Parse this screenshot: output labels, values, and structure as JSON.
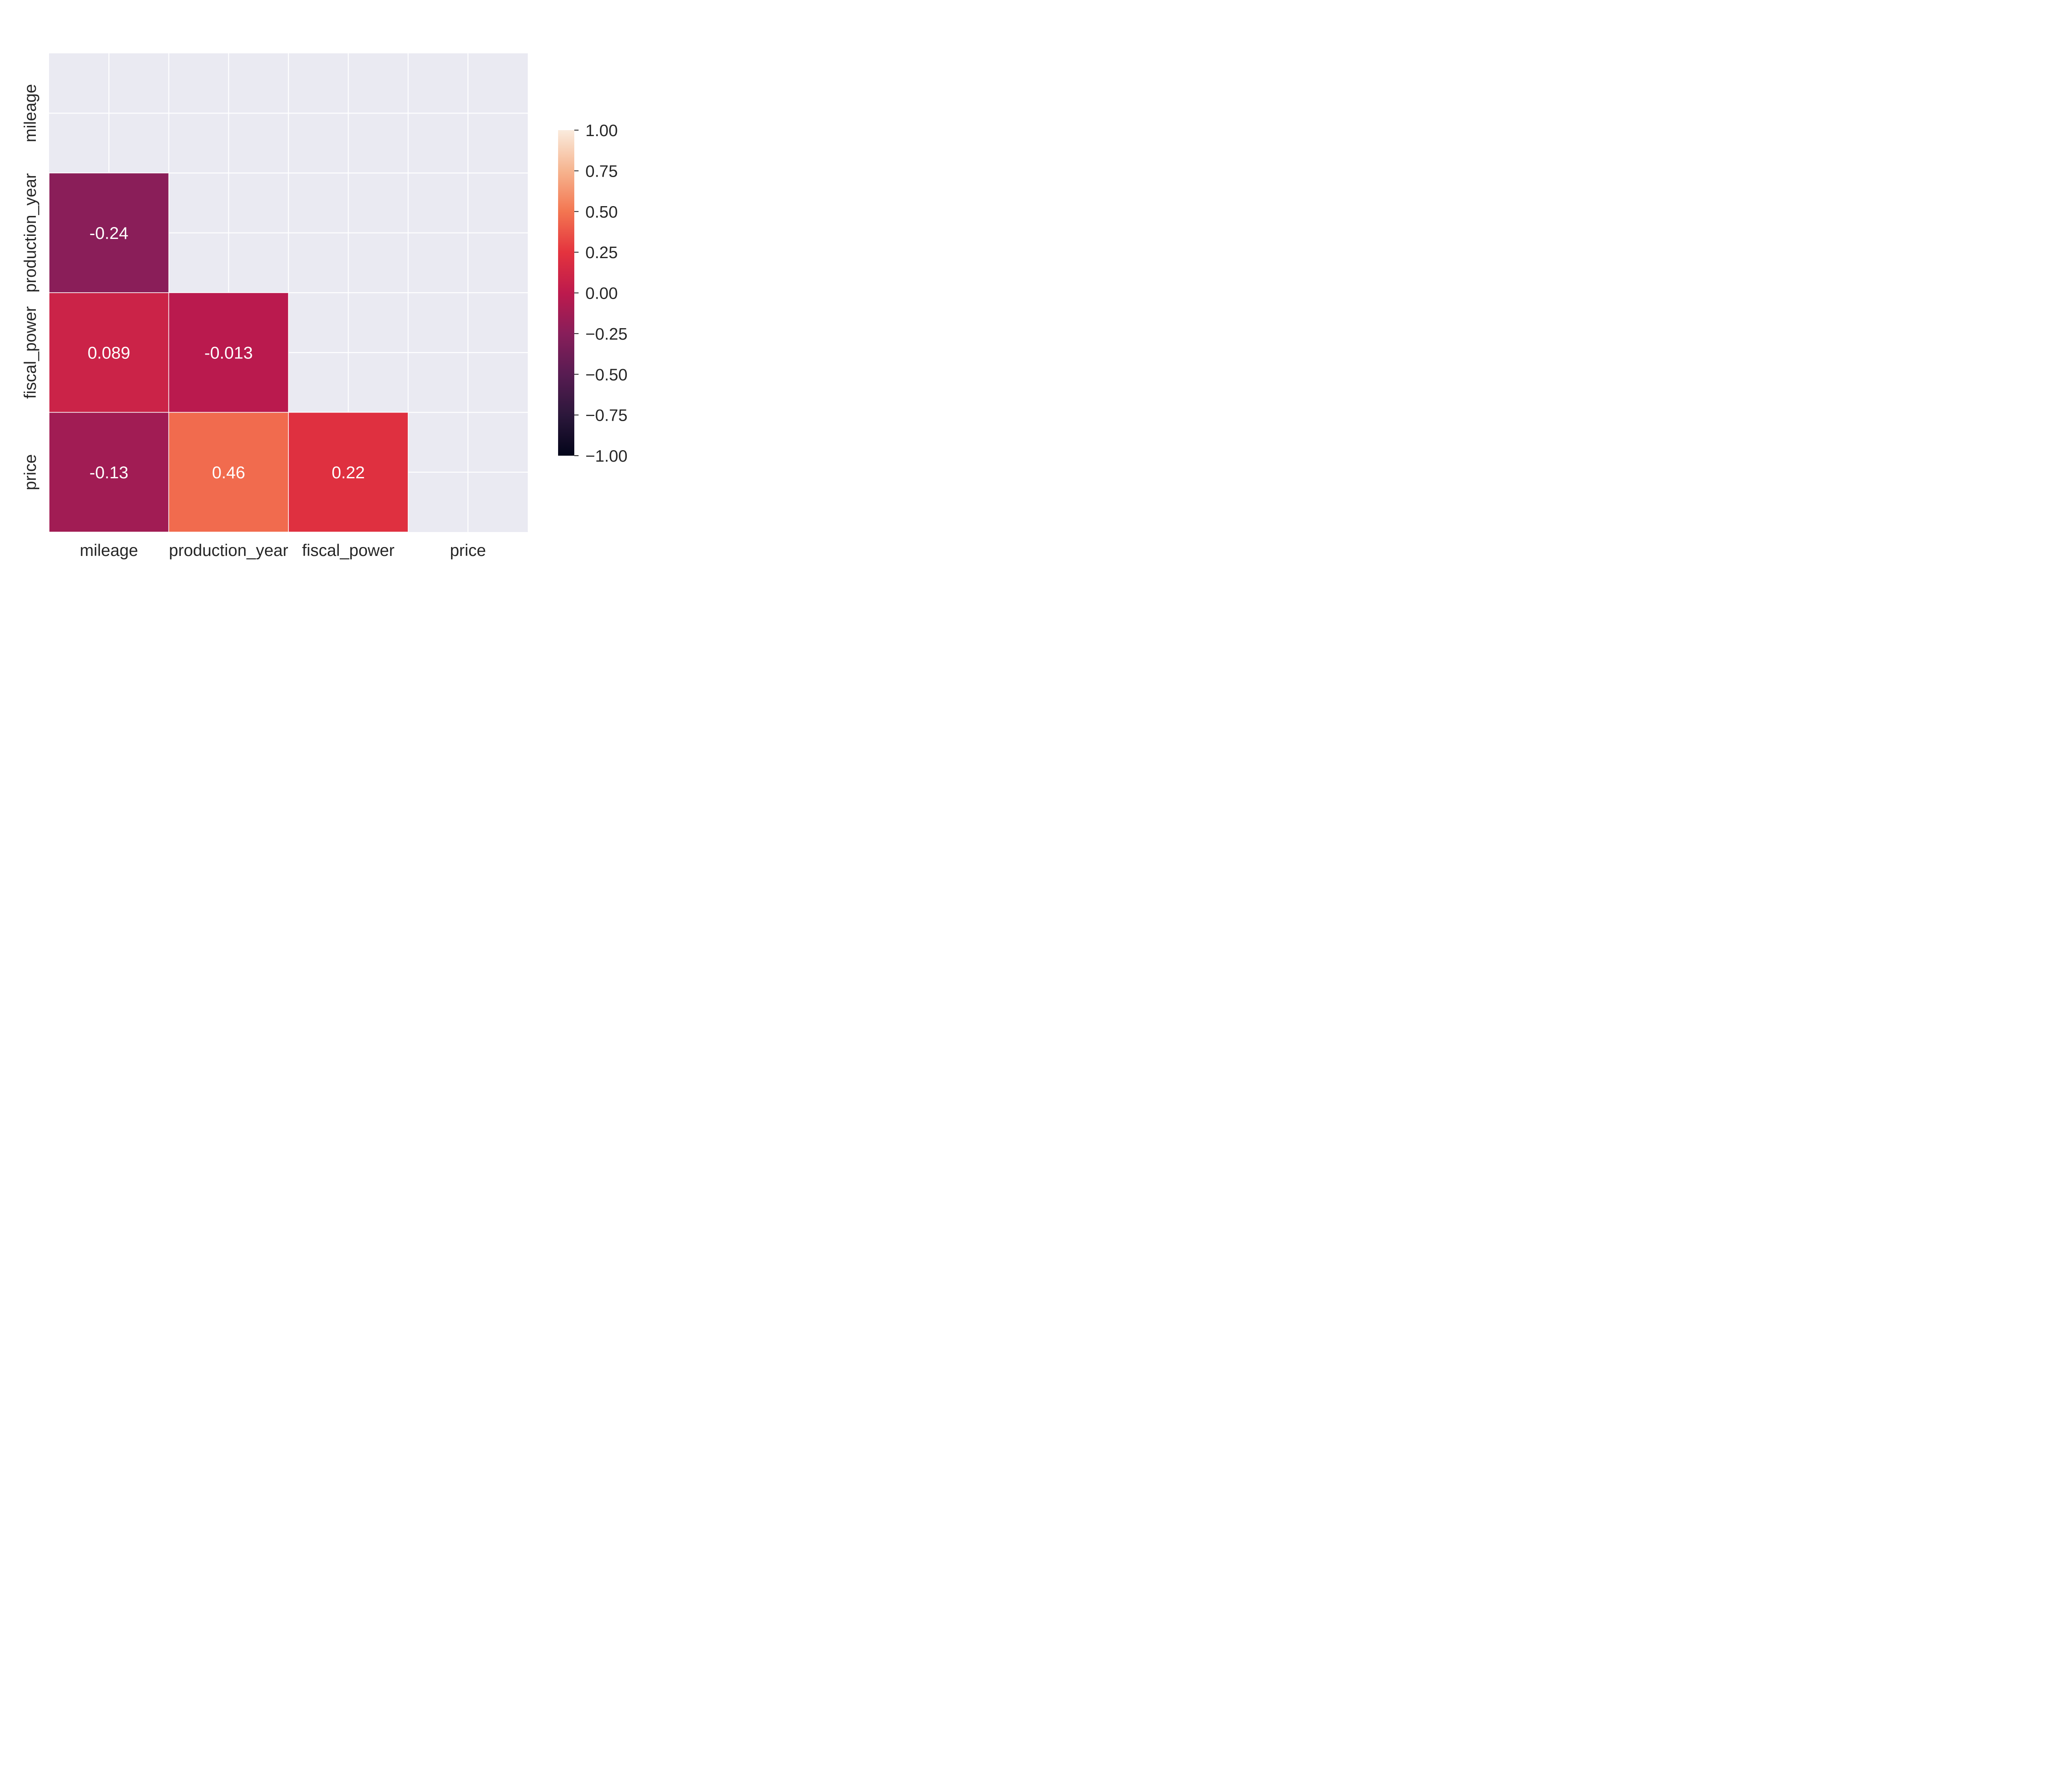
{
  "chart_data": {
    "type": "heatmap",
    "title": "",
    "xlabel": "",
    "ylabel": "",
    "variables": [
      "mileage",
      "production_year",
      "fiscal_power",
      "price"
    ],
    "mask": "upper-triangle-including-diagonal",
    "cells": [
      {
        "row": "production_year",
        "col": "mileage",
        "value": -0.24,
        "label": "-0.24"
      },
      {
        "row": "fiscal_power",
        "col": "mileage",
        "value": 0.089,
        "label": "0.089"
      },
      {
        "row": "fiscal_power",
        "col": "production_year",
        "value": -0.013,
        "label": "-0.013"
      },
      {
        "row": "price",
        "col": "mileage",
        "value": -0.13,
        "label": "-0.13"
      },
      {
        "row": "price",
        "col": "production_year",
        "value": 0.46,
        "label": "0.46"
      },
      {
        "row": "price",
        "col": "fiscal_power",
        "value": 0.22,
        "label": "0.22"
      }
    ],
    "colorbar": {
      "range": [
        -1.0,
        1.0
      ],
      "ticks": [
        1.0,
        0.75,
        0.5,
        0.25,
        0.0,
        -0.25,
        -0.5,
        -0.75,
        -1.0
      ],
      "tick_labels": [
        "1.00",
        "0.75",
        "0.50",
        "0.25",
        "0.00",
        "−0.25",
        "−0.50",
        "−0.75",
        "−1.00"
      ],
      "placement": "right",
      "colormap": "rocket"
    },
    "grid": true,
    "background_color": "#eaeaf2",
    "gridline_color": "#ffffff"
  }
}
